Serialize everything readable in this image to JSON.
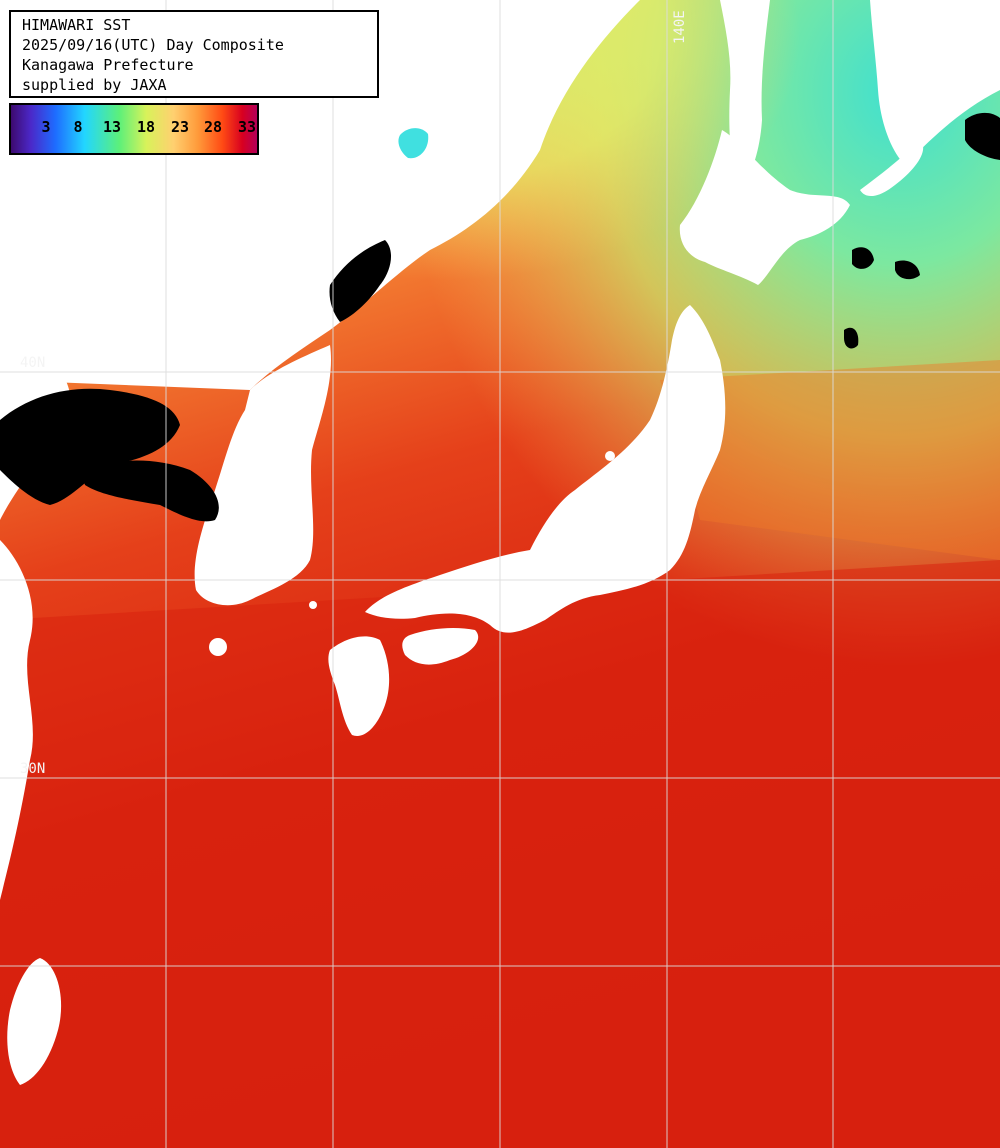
{
  "title_box": {
    "line1": "HIMAWARI SST",
    "line2": "2025/09/16(UTC) Day Composite",
    "line3": "Kanagawa Prefecture",
    "line4": "supplied by JAXA"
  },
  "colorbar": {
    "ticks": [
      "3",
      "8",
      "13",
      "18",
      "23",
      "28",
      "33"
    ],
    "colors": [
      "#3d0a6e",
      "#1e6cff",
      "#22d6ff",
      "#5cf07a",
      "#d8f25a",
      "#ffd070",
      "#ff9a3a",
      "#ff4a14",
      "#d80020",
      "#b4005a"
    ]
  },
  "grid_labels": {
    "lon_140": "140E",
    "lat_upper": "40N",
    "lat_lower": "30N"
  },
  "colors": {
    "land": "#ffffff",
    "cloud_mask": "#000000",
    "grid": "#dcdcdc",
    "ocean_warm": "#d8220f",
    "ocean_mid": "#f06a1e",
    "ocean_cool": "#f8c860",
    "ocean_cold": "#9cf074"
  }
}
